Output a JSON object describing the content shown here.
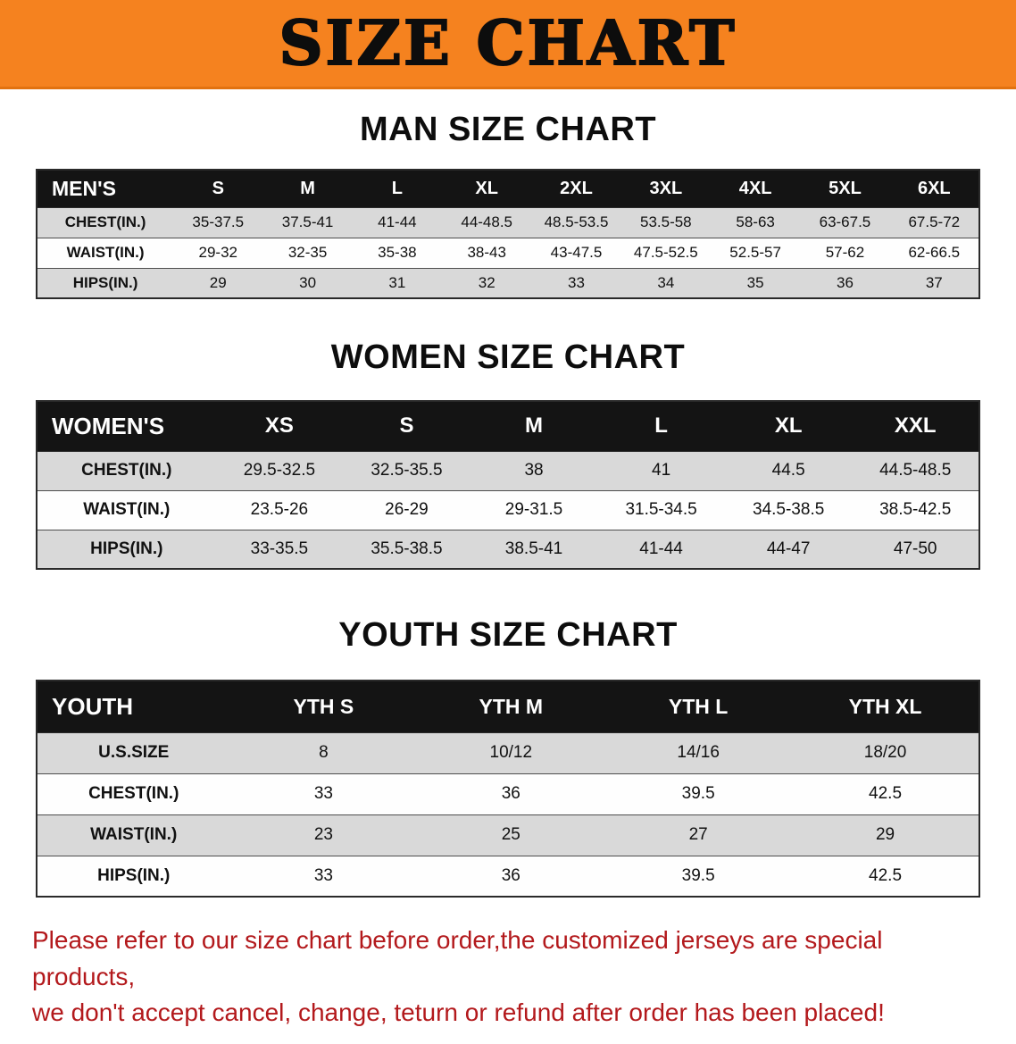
{
  "colors": {
    "banner_orange": "#f5821f",
    "table_header_black": "#141414",
    "row_gray": "#d9d9d9",
    "disclaimer_red": "#b3191c"
  },
  "banner": {
    "title": "SIZE CHART"
  },
  "sections": [
    {
      "heading": "MAN SIZE CHART",
      "table": {
        "header": [
          "MEN'S",
          "S",
          "M",
          "L",
          "XL",
          "2XL",
          "3XL",
          "4XL",
          "5XL",
          "6XL"
        ],
        "rows": [
          [
            "CHEST(IN.)",
            "35-37.5",
            "37.5-41",
            "41-44",
            "44-48.5",
            "48.5-53.5",
            "53.5-58",
            "58-63",
            "63-67.5",
            "67.5-72"
          ],
          [
            "WAIST(IN.)",
            "29-32",
            "32-35",
            "35-38",
            "38-43",
            "43-47.5",
            "47.5-52.5",
            "52.5-57",
            "57-62",
            "62-66.5"
          ],
          [
            "HIPS(IN.)",
            "29",
            "30",
            "31",
            "32",
            "33",
            "34",
            "35",
            "36",
            "37"
          ]
        ]
      }
    },
    {
      "heading": "WOMEN SIZE CHART",
      "table": {
        "header": [
          "WOMEN'S",
          "XS",
          "S",
          "M",
          "L",
          "XL",
          "XXL"
        ],
        "rows": [
          [
            "CHEST(IN.)",
            "29.5-32.5",
            "32.5-35.5",
            "38",
            "41",
            "44.5",
            "44.5-48.5"
          ],
          [
            "WAIST(IN.)",
            "23.5-26",
            "26-29",
            "29-31.5",
            "31.5-34.5",
            "34.5-38.5",
            "38.5-42.5"
          ],
          [
            "HIPS(IN.)",
            "33-35.5",
            "35.5-38.5",
            "38.5-41",
            "41-44",
            "44-47",
            "47-50"
          ]
        ]
      }
    },
    {
      "heading": "YOUTH SIZE CHART",
      "table": {
        "header": [
          "YOUTH",
          "YTH S",
          "YTH M",
          "YTH L",
          "YTH XL"
        ],
        "rows": [
          [
            "U.S.SIZE",
            "8",
            "10/12",
            "14/16",
            "18/20"
          ],
          [
            "CHEST(IN.)",
            "33",
            "36",
            "39.5",
            "42.5"
          ],
          [
            "WAIST(IN.)",
            "23",
            "25",
            "27",
            "29"
          ],
          [
            "HIPS(IN.)",
            "33",
            "36",
            "39.5",
            "42.5"
          ]
        ]
      }
    }
  ],
  "disclaimer": {
    "line1": "Please refer to our size chart before order,the customized jerseys are special products,",
    "line2": "we don't accept cancel, change, teturn or refund after order has been placed!"
  }
}
